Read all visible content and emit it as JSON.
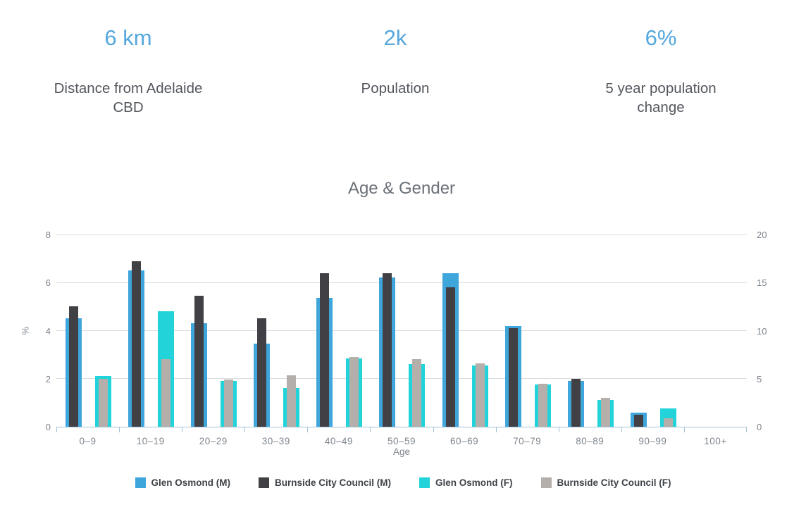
{
  "stats": [
    {
      "value": "6 km",
      "label": "Distance from Adelaide CBD"
    },
    {
      "value": "2k",
      "label": "Population"
    },
    {
      "value": "6%",
      "label": "5 year population change"
    }
  ],
  "accent_color": "#55a7dd",
  "chart_data": {
    "type": "bar",
    "title": "Age & Gender",
    "xlabel": "Age",
    "ylabel": "%",
    "grid": true,
    "legend_position": "bottom",
    "categories": [
      "0–9",
      "10–19",
      "20–29",
      "30–39",
      "40–49",
      "50–59",
      "60–69",
      "70–79",
      "80–89",
      "90–99",
      "100+"
    ],
    "series": [
      {
        "name": "Glen Osmond (M)",
        "color": "#3fa6dc",
        "style": "wide",
        "cluster": 0,
        "values": [
          4.5,
          6.5,
          4.3,
          3.45,
          5.35,
          6.2,
          6.4,
          4.2,
          1.9,
          0.6,
          0
        ]
      },
      {
        "name": "Burnside City Council (M)",
        "color": "#404045",
        "style": "narrow",
        "cluster": 0,
        "values": [
          5.0,
          6.9,
          5.45,
          4.5,
          6.4,
          6.4,
          5.8,
          4.1,
          2.0,
          0.5,
          0
        ]
      },
      {
        "name": "Glen Osmond (F)",
        "color": "#22d4d9",
        "style": "wide",
        "cluster": 1,
        "values": [
          2.1,
          4.8,
          1.9,
          1.6,
          2.85,
          2.6,
          2.55,
          1.75,
          1.1,
          0.75,
          0
        ]
      },
      {
        "name": "Burnside City Council (F)",
        "color": "#b5afac",
        "style": "narrow",
        "cluster": 1,
        "values": [
          2.0,
          2.8,
          1.95,
          2.15,
          2.9,
          2.8,
          2.65,
          1.8,
          1.2,
          0.35,
          0
        ]
      }
    ],
    "left_axis": {
      "ticks": [
        0,
        2,
        4,
        6,
        8
      ],
      "max": 8
    },
    "right_axis": {
      "ticks": [
        0,
        5,
        10,
        15,
        20
      ],
      "max": 20
    }
  }
}
